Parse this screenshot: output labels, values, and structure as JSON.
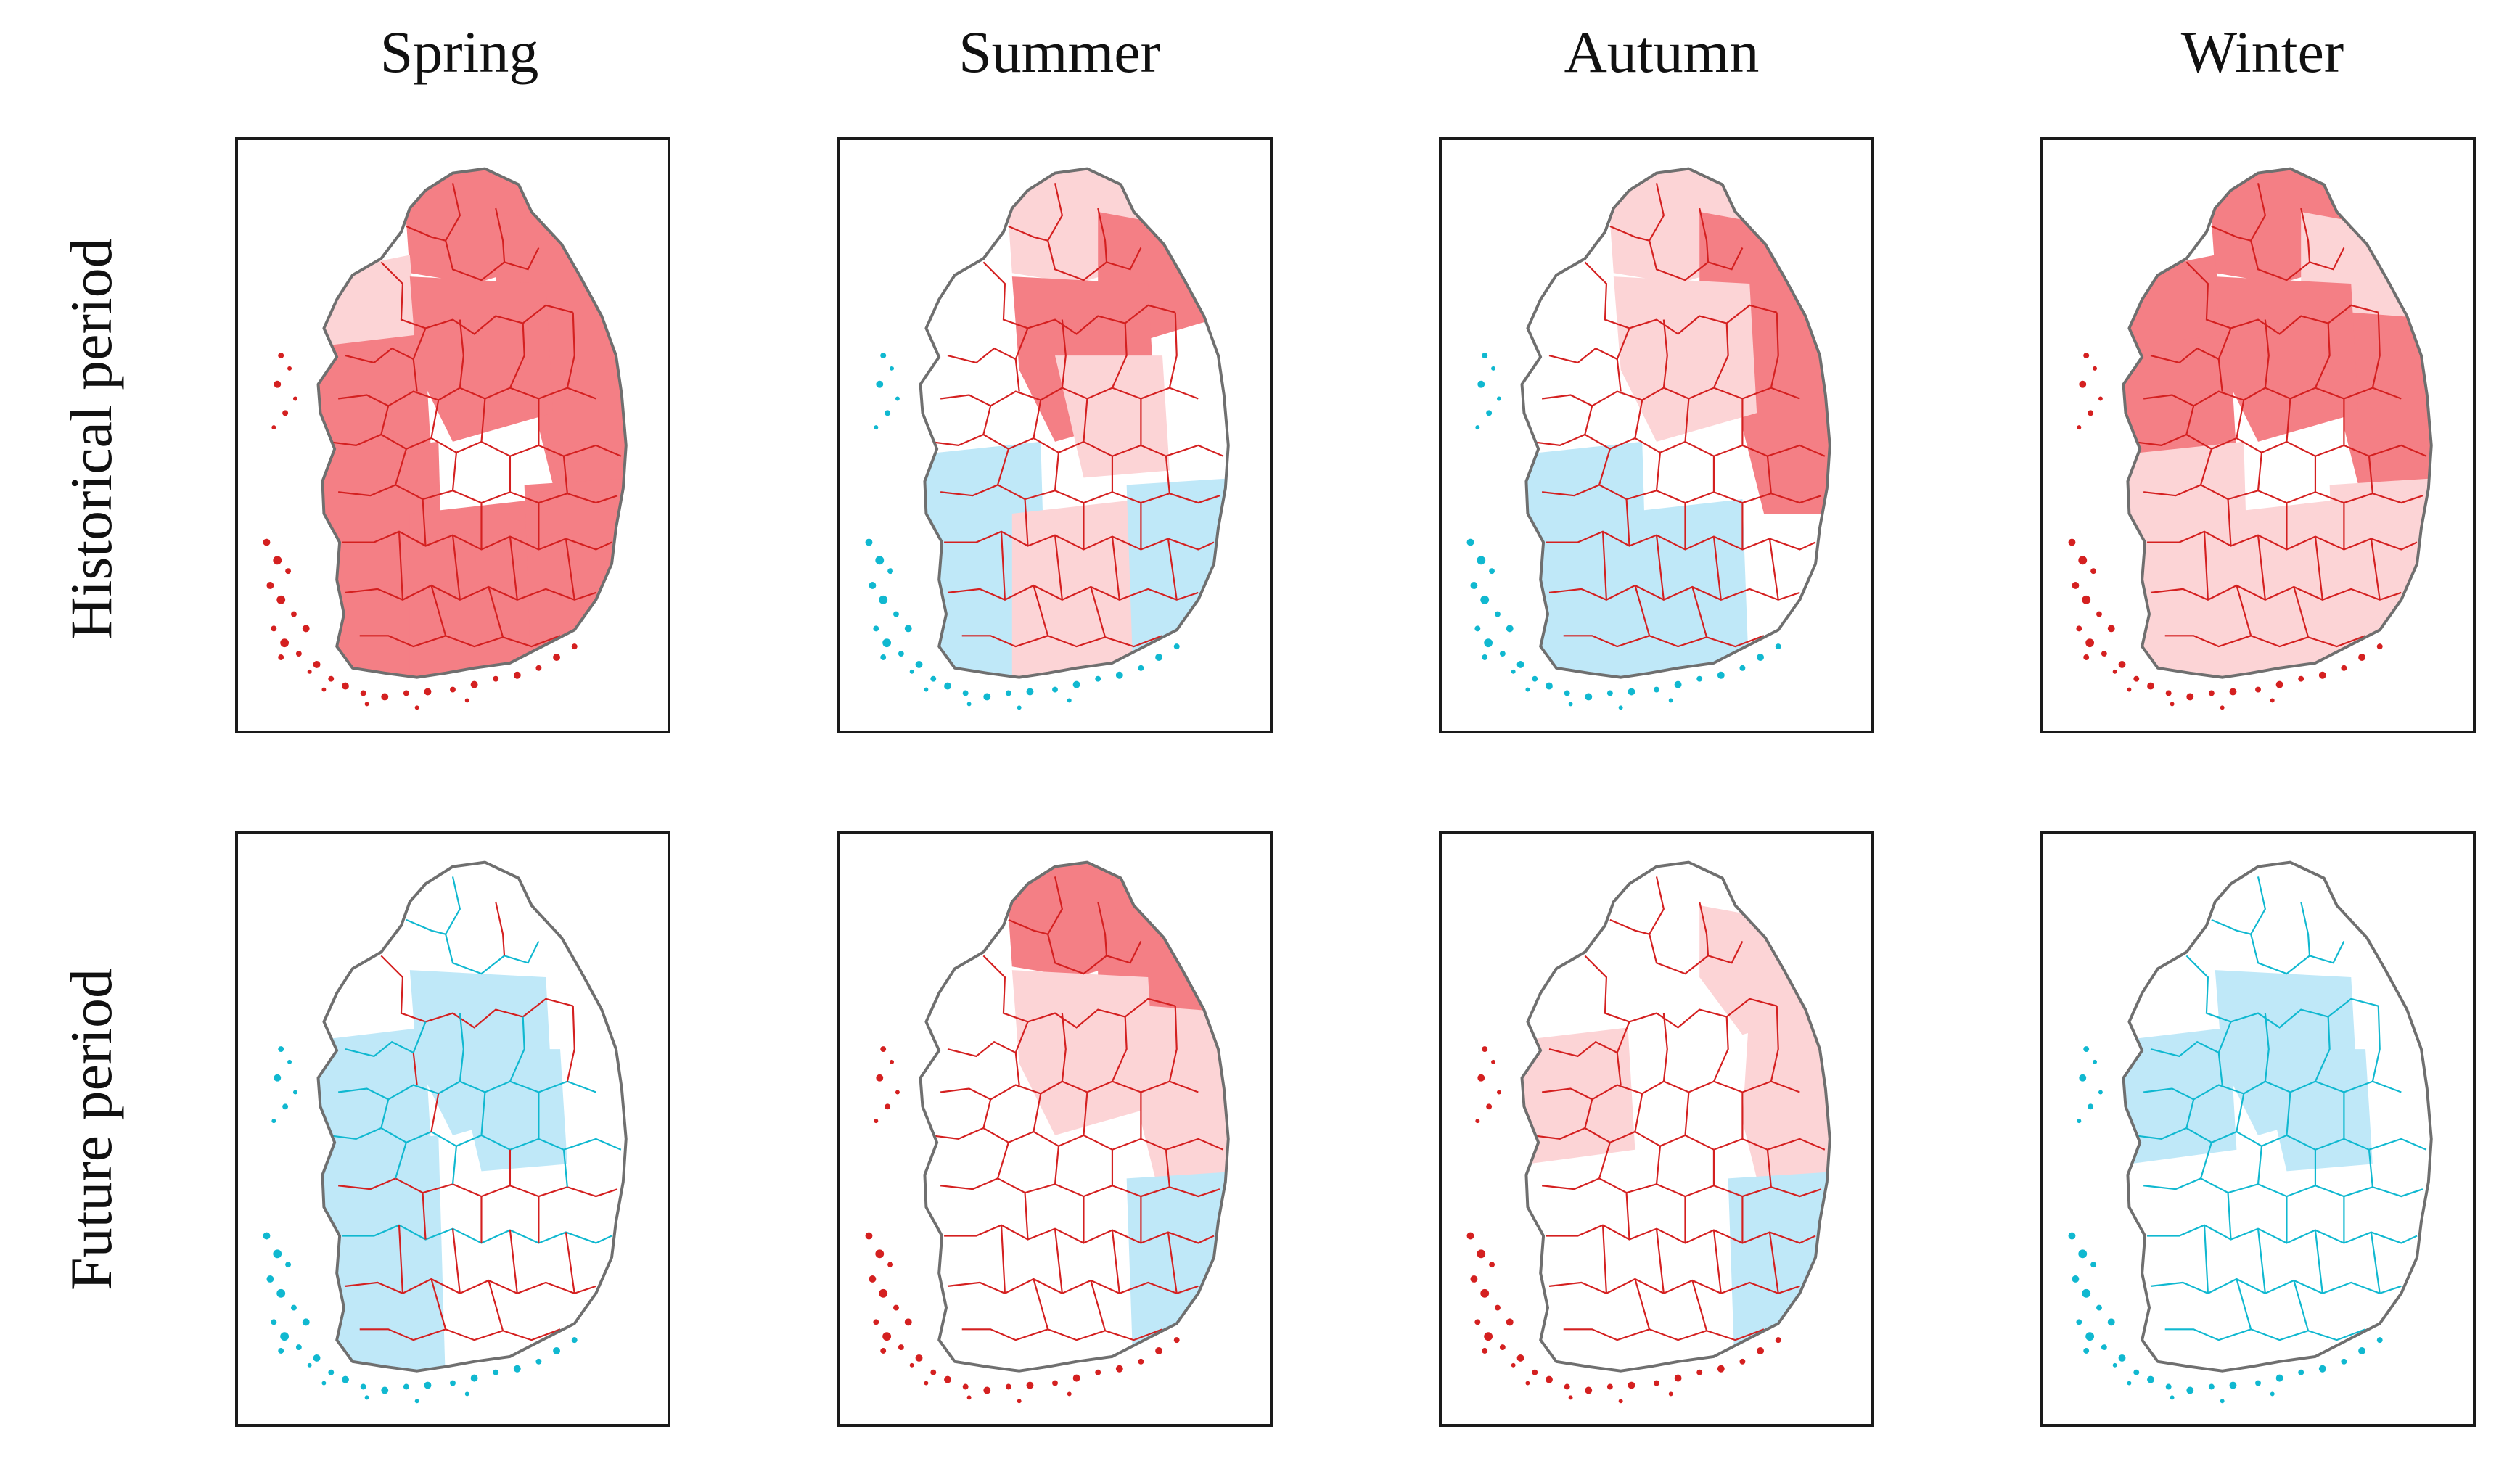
{
  "columns": [
    "Spring",
    "Summer",
    "Autumn",
    "Winter"
  ],
  "rows": [
    "Historical period",
    "Future period"
  ],
  "colors": {
    "coastline": "#6f6f6f",
    "positive_boundary": "#d42020",
    "negative_boundary": "#10b8d0",
    "positive_strong_fill": "#f47f85",
    "positive_weak_fill": "#fcd4d6",
    "negative_fill": "#bfe8f8",
    "no_change_fill": "#ffffff",
    "panel_border": "#1a1a1a"
  },
  "maps": [
    {
      "season": "Spring",
      "period": "Historical period",
      "dominant_trend": "positive",
      "regions": {
        "north": "strong",
        "northeast": "strong",
        "east": "strong",
        "northwest": "weak",
        "west": "strong",
        "center": "strong",
        "southwest": "strong",
        "southeast": "strong",
        "south": "strong",
        "east_center": "none"
      }
    },
    {
      "season": "Summer",
      "period": "Historical period",
      "dominant_trend": "positive",
      "regions": {
        "north": "weak",
        "northeast": "strong",
        "east": "none",
        "northwest": "none",
        "west": "none",
        "center": "strong",
        "southwest": "negative",
        "southeast": "negative",
        "south": "weak",
        "east_center": "weak"
      }
    },
    {
      "season": "Autumn",
      "period": "Historical period",
      "dominant_trend": "positive",
      "regions": {
        "north": "weak",
        "northeast": "strong",
        "east": "strong",
        "northwest": "none",
        "west": "none",
        "center": "weak",
        "southwest": "negative",
        "southeast": "none",
        "south": "negative",
        "east_center": "none"
      }
    },
    {
      "season": "Winter",
      "period": "Historical period",
      "dominant_trend": "positive",
      "regions": {
        "north": "strong",
        "northeast": "weak",
        "east": "strong",
        "northwest": "strong",
        "west": "strong",
        "center": "strong",
        "southwest": "weak",
        "southeast": "weak",
        "south": "weak",
        "east_center": "none"
      }
    },
    {
      "season": "Spring",
      "period": "Future period",
      "dominant_trend": "mixed",
      "regions": {
        "north": "none",
        "northeast": "none",
        "east": "none",
        "northwest": "none",
        "west": "negative",
        "center": "negative",
        "southwest": "negative",
        "southeast": "none",
        "south": "none",
        "east_center": "negative"
      }
    },
    {
      "season": "Summer",
      "period": "Future period",
      "dominant_trend": "positive",
      "regions": {
        "north": "strong",
        "northeast": "strong",
        "east": "weak",
        "northwest": "none",
        "west": "none",
        "center": "weak",
        "southwest": "none",
        "southeast": "negative",
        "south": "none",
        "east_center": "none"
      }
    },
    {
      "season": "Autumn",
      "period": "Future period",
      "dominant_trend": "positive",
      "regions": {
        "north": "none",
        "northeast": "weak",
        "east": "weak",
        "northwest": "none",
        "west": "weak",
        "center": "none",
        "southwest": "none",
        "southeast": "negative",
        "south": "none",
        "east_center": "none"
      }
    },
    {
      "season": "Winter",
      "period": "Future period",
      "dominant_trend": "negative",
      "regions": {
        "north": "none",
        "northeast": "none",
        "east": "none",
        "northwest": "none",
        "west": "negative",
        "center": "negative",
        "southwest": "none",
        "southeast": "none",
        "south": "none",
        "east_center": "negative"
      }
    }
  ]
}
